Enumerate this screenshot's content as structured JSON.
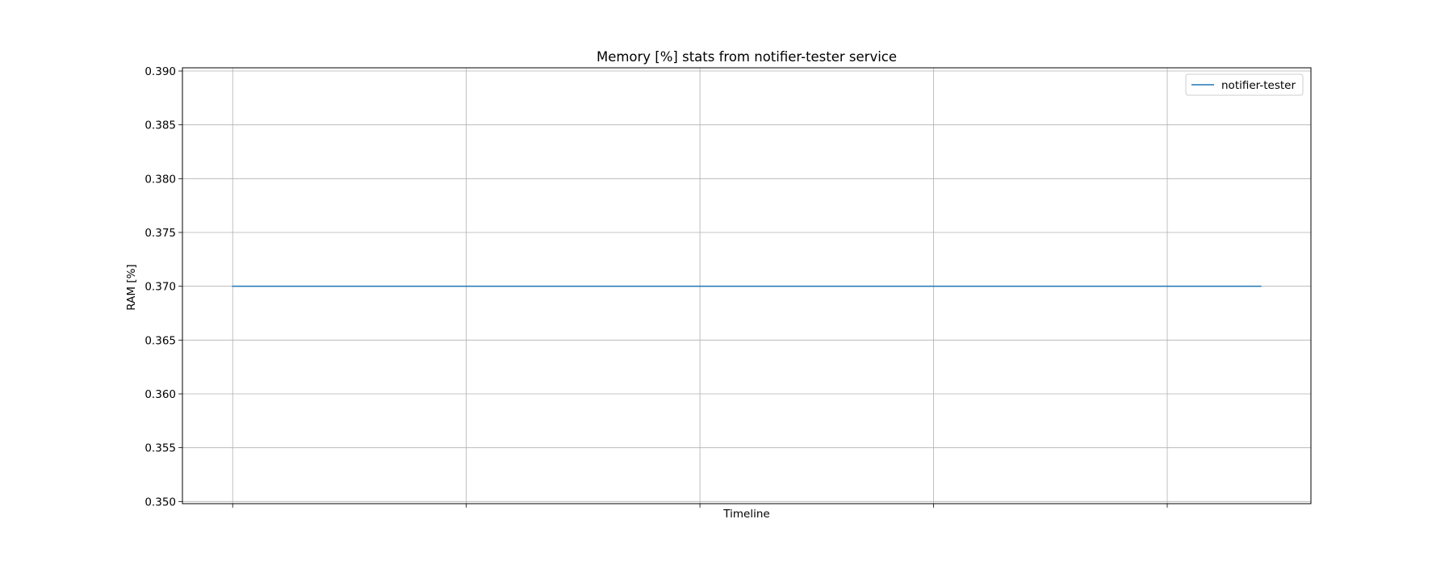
{
  "chart_data": {
    "type": "line",
    "title": "Memory [%] stats from notifier-tester service",
    "xlabel": "Timeline",
    "ylabel": "RAM [%]",
    "ylim": [
      0.3498,
      0.3903
    ],
    "yticks": [
      0.35,
      0.355,
      0.36,
      0.365,
      0.37,
      0.375,
      0.38,
      0.385,
      0.39
    ],
    "x_gridlines": 5,
    "grid": true,
    "legend_position": "top-right",
    "series": [
      {
        "name": "notifier-tester",
        "color": "#1f77b4",
        "x": [
          0,
          1,
          2,
          3,
          4,
          4.4
        ],
        "values": [
          0.37,
          0.37,
          0.37,
          0.37,
          0.37,
          0.37
        ]
      }
    ],
    "xlim": [
      -0.215,
      4.615
    ]
  }
}
